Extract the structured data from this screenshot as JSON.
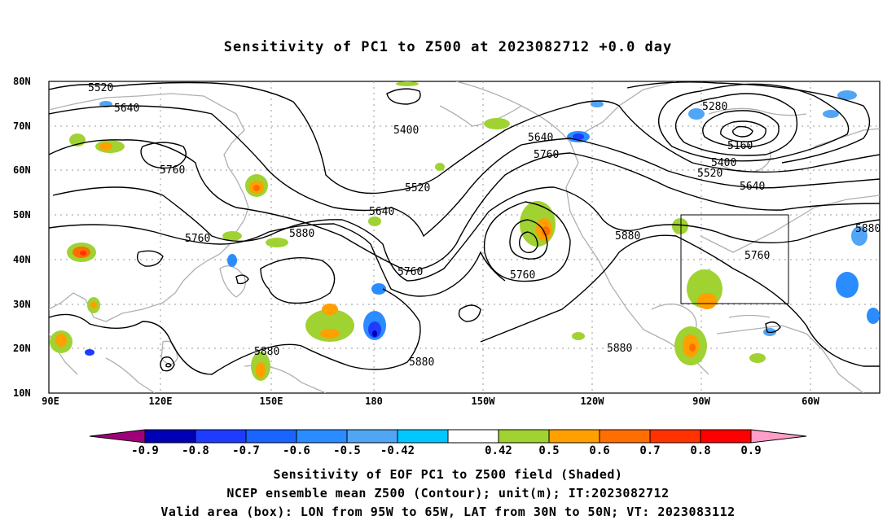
{
  "title": "Sensitivity of PC1 to Z500 at 2023082712 +0.0 day",
  "lat_labels": [
    "80N",
    "70N",
    "60N",
    "50N",
    "40N",
    "30N",
    "20N",
    "10N"
  ],
  "lon_labels": [
    "90E",
    "120E",
    "150E",
    "180",
    "150W",
    "120W",
    "90W",
    "60W"
  ],
  "contour_labels": [
    "5520",
    "5640",
    "5400",
    "5760",
    "5520",
    "5640",
    "5760",
    "5880",
    "5880",
    "5760",
    "5760",
    "5880",
    "5880",
    "5880",
    "5880",
    "5640",
    "5760",
    "5280",
    "5160",
    "5400",
    "5520",
    "5640",
    "5760",
    "5880"
  ],
  "colorbar": {
    "labels": [
      "-0.9",
      "-0.8",
      "-0.7",
      "-0.6",
      "-0.5",
      "-0.42",
      "0.42",
      "0.5",
      "0.6",
      "0.7",
      "0.8",
      "0.9"
    ],
    "colors": [
      "#a0007a",
      "#0000b4",
      "#1e3cff",
      "#1a64ff",
      "#2a8cff",
      "#50a5f5",
      "#00c8ff",
      "#ffffff",
      "#a0d232",
      "#ffa000",
      "#ff6e00",
      "#ff3200",
      "#ff0000",
      "#ff9ec8"
    ]
  },
  "captions": [
    "Sensitivity of EOF PC1 to Z500 field (Shaded)",
    "NCEP ensemble mean Z500 (Contour); unit(m); IT:2023082712",
    "Valid area (box): LON from 95W to 65W, LAT from 30N to 50N; VT: 2023083112"
  ]
}
